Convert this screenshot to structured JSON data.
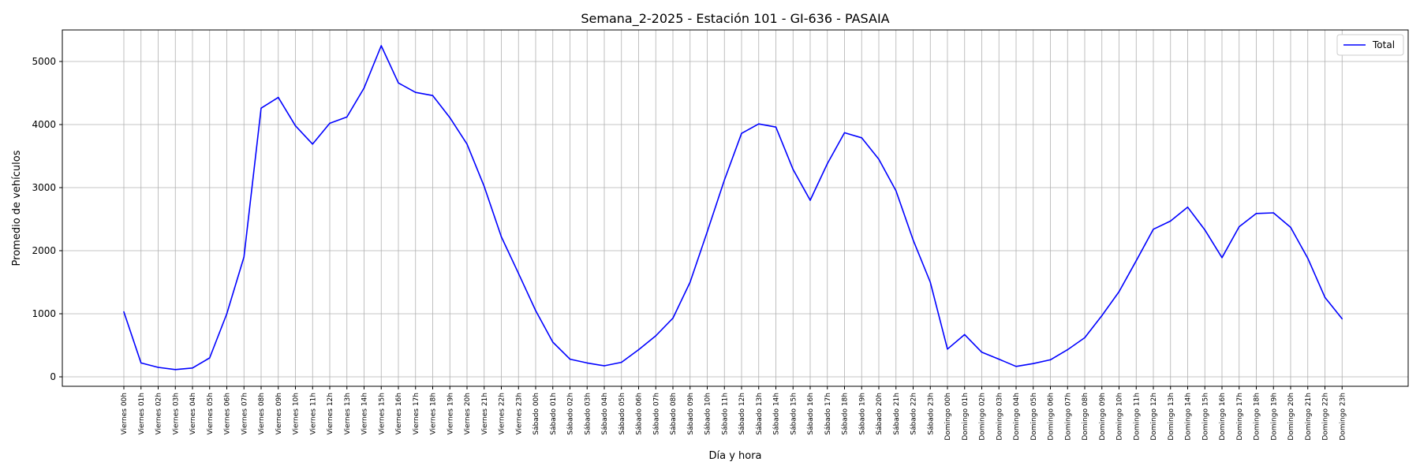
{
  "chart_data": {
    "type": "line",
    "title": "Semana_2-2025 - Estación 101 - GI-636  - PASAIA",
    "xlabel": "Día y hora",
    "ylabel": "Promedio de vehículos",
    "ylim": [
      -150,
      5500
    ],
    "yticks": [
      0,
      1000,
      2000,
      3000,
      4000,
      5000
    ],
    "grid": true,
    "legend_position": "top-right",
    "line_color": "#0000ff",
    "categories": [
      "Viernes 00h",
      "Viernes 01h",
      "Viernes 02h",
      "Viernes 03h",
      "Viernes 04h",
      "Viernes 05h",
      "Viernes 06h",
      "Viernes 07h",
      "Viernes 08h",
      "Viernes 09h",
      "Viernes 10h",
      "Viernes 11h",
      "Viernes 12h",
      "Viernes 13h",
      "Viernes 14h",
      "Viernes 15h",
      "Viernes 16h",
      "Viernes 17h",
      "Viernes 18h",
      "Viernes 19h",
      "Viernes 20h",
      "Viernes 21h",
      "Viernes 22h",
      "Viernes 23h",
      "Sábado 00h",
      "Sábado 01h",
      "Sábado 02h",
      "Sábado 03h",
      "Sábado 04h",
      "Sábado 05h",
      "Sábado 06h",
      "Sábado 07h",
      "Sábado 08h",
      "Sábado 09h",
      "Sábado 10h",
      "Sábado 11h",
      "Sábado 12h",
      "Sábado 13h",
      "Sábado 14h",
      "Sábado 15h",
      "Sábado 16h",
      "Sábado 17h",
      "Sábado 18h",
      "Sábado 19h",
      "Sábado 20h",
      "Sábado 21h",
      "Sábado 22h",
      "Sábado 23h",
      "Domingo 00h",
      "Domingo 01h",
      "Domingo 02h",
      "Domingo 03h",
      "Domingo 04h",
      "Domingo 05h",
      "Domingo 06h",
      "Domingo 07h",
      "Domingo 08h",
      "Domingo 09h",
      "Domingo 10h",
      "Domingo 11h",
      "Domingo 12h",
      "Domingo 13h",
      "Domingo 14h",
      "Domingo 15h",
      "Domingo 16h",
      "Domingo 17h",
      "Domingo 18h",
      "Domingo 19h",
      "Domingo 20h",
      "Domingo 21h",
      "Domingo 22h",
      "Domingo 23h"
    ],
    "series": [
      {
        "name": "Total",
        "values": [
          1030,
          220,
          150,
          115,
          140,
          300,
          1000,
          1900,
          4260,
          4430,
          3980,
          3690,
          4020,
          4120,
          4580,
          5250,
          4660,
          4510,
          4460,
          4110,
          3690,
          3020,
          2220,
          1640,
          1050,
          550,
          280,
          220,
          175,
          230,
          430,
          650,
          930,
          1500,
          2300,
          3120,
          3860,
          4010,
          3960,
          3290,
          2800,
          3380,
          3870,
          3790,
          3450,
          2950,
          2170,
          1500,
          440,
          670,
          390,
          280,
          165,
          210,
          270,
          430,
          620,
          970,
          1350,
          1840,
          2340,
          2470,
          2690,
          2330,
          1890,
          2380,
          2590,
          2600,
          2370,
          1880,
          1260,
          920
        ]
      }
    ]
  }
}
